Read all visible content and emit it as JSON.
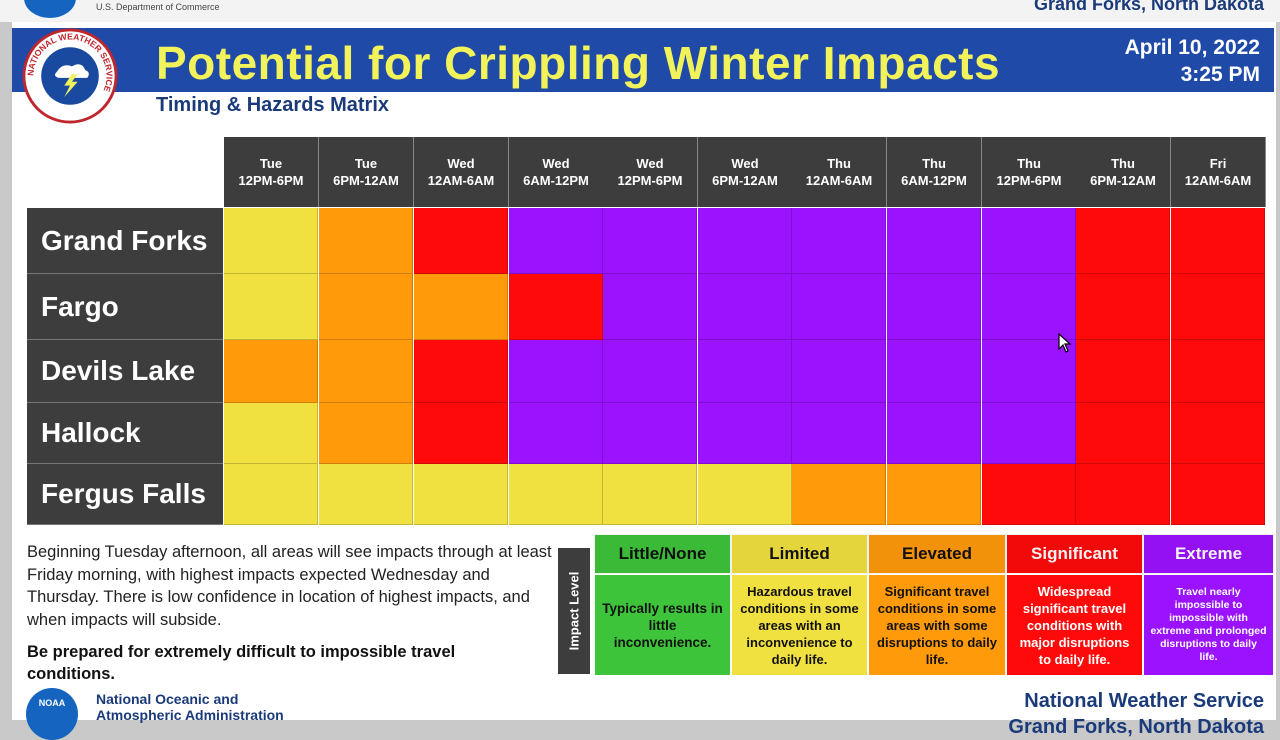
{
  "header": {
    "dept": "U.S. Department of Commerce",
    "office_top": "Grand Forks, North Dakota",
    "title": "Potential for Crippling Winter Impacts",
    "date": "April 10, 2022",
    "time": "3:25 PM",
    "subtitle": "Timing & Hazards Matrix"
  },
  "colors": {
    "little": "#3ec43b",
    "limited": "#f0e040",
    "elevated": "#ff9a0a",
    "significant": "#ff0a0a",
    "extreme": "#9b12ff"
  },
  "matrix": {
    "periods": [
      {
        "day": "Tue",
        "time": "12PM-6PM"
      },
      {
        "day": "Tue",
        "time": "6PM-12AM"
      },
      {
        "day": "Wed",
        "time": "12AM-6AM"
      },
      {
        "day": "Wed",
        "time": "6AM-12PM"
      },
      {
        "day": "Wed",
        "time": "12PM-6PM"
      },
      {
        "day": "Wed",
        "time": "6PM-12AM"
      },
      {
        "day": "Thu",
        "time": "12AM-6AM"
      },
      {
        "day": "Thu",
        "time": "6AM-12PM"
      },
      {
        "day": "Thu",
        "time": "12PM-6PM"
      },
      {
        "day": "Thu",
        "time": "6PM-12AM"
      },
      {
        "day": "Fri",
        "time": "12AM-6AM"
      }
    ],
    "rows": [
      {
        "location": "Grand Forks",
        "levels": [
          "limited",
          "elevated",
          "significant",
          "extreme",
          "extreme",
          "extreme",
          "extreme",
          "extreme",
          "extreme",
          "significant",
          "significant"
        ]
      },
      {
        "location": "Fargo",
        "levels": [
          "limited",
          "elevated",
          "elevated",
          "significant",
          "extreme",
          "extreme",
          "extreme",
          "extreme",
          "extreme",
          "significant",
          "significant"
        ]
      },
      {
        "location": "Devils Lake",
        "levels": [
          "elevated",
          "elevated",
          "significant",
          "extreme",
          "extreme",
          "extreme",
          "extreme",
          "extreme",
          "extreme",
          "significant",
          "significant"
        ]
      },
      {
        "location": "Hallock",
        "levels": [
          "limited",
          "elevated",
          "significant",
          "extreme",
          "extreme",
          "extreme",
          "extreme",
          "extreme",
          "extreme",
          "significant",
          "significant"
        ]
      },
      {
        "location": "Fergus Falls",
        "levels": [
          "limited",
          "limited",
          "limited",
          "limited",
          "limited",
          "limited",
          "elevated",
          "elevated",
          "significant",
          "significant",
          "significant"
        ]
      }
    ]
  },
  "description": "Beginning Tuesday afternoon, all areas will see impacts through at least Friday morning, with highest impacts expected Wednesday and Thursday. There is low confidence in location of highest impacts, and when impacts will subside.",
  "prepare": "Be prepared for extremely difficult to impossible travel conditions.",
  "legend": {
    "axis_label": "Impact Level",
    "levels": [
      {
        "key": "little",
        "label": "Little/None",
        "text": "Typically results in little inconvenience."
      },
      {
        "key": "limited",
        "label": "Limited",
        "text": "Hazardous travel conditions in some areas with an inconvenience to daily life."
      },
      {
        "key": "elevated",
        "label": "Elevated",
        "text": "Significant travel conditions in some areas with some disruptions to daily life."
      },
      {
        "key": "significant",
        "label": "Significant",
        "text": "Widespread significant travel conditions with major disruptions to daily life."
      },
      {
        "key": "extreme",
        "label": "Extreme",
        "text": "Travel nearly impossible to impossible with extreme and prolonged disruptions to daily life."
      }
    ]
  },
  "footer": {
    "noaa_icon": "NOAA",
    "noaa_line1": "National Oceanic and",
    "noaa_line2": "Atmospheric Administration",
    "nws_line1": "National Weather Service",
    "nws_line2": "Grand Forks, North Dakota"
  },
  "logo_text": "NATIONAL WEATHER SERVICE"
}
